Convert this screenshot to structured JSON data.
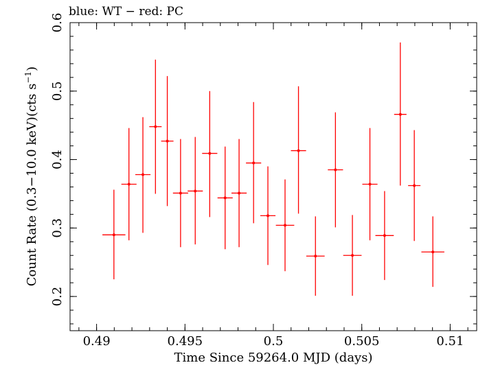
{
  "chart_data": {
    "type": "scatter",
    "title": "blue: WT − red: PC",
    "xlabel": "Time Since 59264.0 MJD (days)",
    "ylabel_parts": {
      "main": "Count Rate (0.3−10.0 keV)(cts s",
      "superscript": "−1",
      "close": ")"
    },
    "xlim": [
      0.4885,
      0.5115
    ],
    "ylim": [
      0.15,
      0.6
    ],
    "x_ticks": [
      {
        "value": 0.49,
        "label": "0.49"
      },
      {
        "value": 0.495,
        "label": "0.495"
      },
      {
        "value": 0.5,
        "label": "0.5"
      },
      {
        "value": 0.505,
        "label": "0.505"
      },
      {
        "value": 0.51,
        "label": "0.51"
      }
    ],
    "y_ticks": [
      {
        "value": 0.2,
        "label": "0.2"
      },
      {
        "value": 0.3,
        "label": "0.3"
      },
      {
        "value": 0.4,
        "label": "0.4"
      },
      {
        "value": 0.5,
        "label": "0.5"
      },
      {
        "value": 0.6,
        "label": "0.6"
      }
    ],
    "x_minor_step": 0.001,
    "y_minor_step": 0.02,
    "series": [
      {
        "color": "#ff0000",
        "points": [
          {
            "x": 0.49098,
            "xerr": 0.00065,
            "y": 0.29,
            "ylo": 0.225,
            "yhi": 0.356
          },
          {
            "x": 0.49183,
            "xerr": 0.00043,
            "y": 0.364,
            "ylo": 0.282,
            "yhi": 0.446
          },
          {
            "x": 0.49262,
            "xerr": 0.00043,
            "y": 0.378,
            "ylo": 0.293,
            "yhi": 0.462
          },
          {
            "x": 0.49333,
            "xerr": 0.00035,
            "y": 0.448,
            "ylo": 0.35,
            "yhi": 0.546
          },
          {
            "x": 0.494,
            "xerr": 0.00035,
            "y": 0.427,
            "ylo": 0.332,
            "yhi": 0.522
          },
          {
            "x": 0.49475,
            "xerr": 0.00043,
            "y": 0.351,
            "ylo": 0.272,
            "yhi": 0.43
          },
          {
            "x": 0.49558,
            "xerr": 0.00043,
            "y": 0.354,
            "ylo": 0.276,
            "yhi": 0.433
          },
          {
            "x": 0.4964,
            "xerr": 0.00043,
            "y": 0.409,
            "ylo": 0.316,
            "yhi": 0.5
          },
          {
            "x": 0.49727,
            "xerr": 0.00043,
            "y": 0.344,
            "ylo": 0.269,
            "yhi": 0.419
          },
          {
            "x": 0.49806,
            "xerr": 0.00043,
            "y": 0.351,
            "ylo": 0.272,
            "yhi": 0.43
          },
          {
            "x": 0.49888,
            "xerr": 0.00043,
            "y": 0.395,
            "ylo": 0.307,
            "yhi": 0.484
          },
          {
            "x": 0.49969,
            "xerr": 0.00043,
            "y": 0.318,
            "ylo": 0.246,
            "yhi": 0.39
          },
          {
            "x": 0.50066,
            "xerr": 0.00052,
            "y": 0.304,
            "ylo": 0.237,
            "yhi": 0.371
          },
          {
            "x": 0.50142,
            "xerr": 0.00043,
            "y": 0.413,
            "ylo": 0.321,
            "yhi": 0.507
          },
          {
            "x": 0.50238,
            "xerr": 0.00052,
            "y": 0.259,
            "ylo": 0.201,
            "yhi": 0.317
          },
          {
            "x": 0.50351,
            "xerr": 0.00043,
            "y": 0.385,
            "ylo": 0.301,
            "yhi": 0.469
          },
          {
            "x": 0.50447,
            "xerr": 0.00052,
            "y": 0.26,
            "ylo": 0.201,
            "yhi": 0.319
          },
          {
            "x": 0.50546,
            "xerr": 0.00043,
            "y": 0.364,
            "ylo": 0.282,
            "yhi": 0.446
          },
          {
            "x": 0.50629,
            "xerr": 0.00052,
            "y": 0.289,
            "ylo": 0.224,
            "yhi": 0.354
          },
          {
            "x": 0.50718,
            "xerr": 0.00035,
            "y": 0.466,
            "ylo": 0.362,
            "yhi": 0.571
          },
          {
            "x": 0.50797,
            "xerr": 0.00035,
            "y": 0.362,
            "ylo": 0.281,
            "yhi": 0.443
          },
          {
            "x": 0.50902,
            "xerr": 0.00065,
            "y": 0.265,
            "ylo": 0.214,
            "yhi": 0.317
          }
        ]
      }
    ]
  }
}
